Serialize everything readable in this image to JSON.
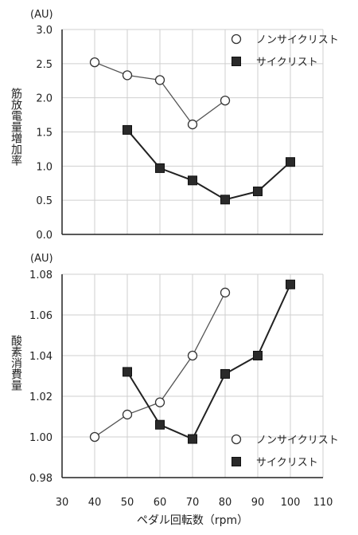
{
  "chart_data": [
    {
      "type": "line",
      "unit": "(AU)",
      "ylabel": "筋放電量増加率",
      "ylim": [
        0.0,
        3.0
      ],
      "yticks": [
        "3.0",
        "2.5",
        "2.0",
        "1.5",
        "1.0",
        "0.5",
        "0.0"
      ],
      "xlim": [
        30,
        110
      ],
      "legend_position": "top-right",
      "grid": true,
      "series": [
        {
          "name": "ノンサイクリスト",
          "marker": "circle-open",
          "x": [
            40,
            50,
            60,
            70,
            80
          ],
          "y": [
            2.52,
            2.33,
            2.26,
            1.61,
            1.96
          ]
        },
        {
          "name": "サイクリスト",
          "marker": "square-filled",
          "x": [
            50,
            60,
            70,
            80,
            90,
            100
          ],
          "y": [
            1.53,
            0.97,
            0.79,
            0.51,
            0.63,
            1.06
          ]
        }
      ]
    },
    {
      "type": "line",
      "unit": "(AU)",
      "ylabel": "酸素消費量",
      "ylim": [
        0.98,
        1.08
      ],
      "yticks": [
        "1.08",
        "1.06",
        "1.04",
        "1.02",
        "1.00",
        "0.98"
      ],
      "xlim": [
        30,
        110
      ],
      "xticks": [
        "30",
        "40",
        "50",
        "60",
        "70",
        "80",
        "90",
        "100",
        "110"
      ],
      "xlabel": "ペダル回転数（rpm）",
      "legend_position": "bottom-right",
      "grid": true,
      "series": [
        {
          "name": "ノンサイクリスト",
          "marker": "circle-open",
          "x": [
            40,
            50,
            60,
            70,
            80
          ],
          "y": [
            1.0,
            1.011,
            1.017,
            1.04,
            1.071
          ]
        },
        {
          "name": "サイクリスト",
          "marker": "square-filled",
          "x": [
            50,
            60,
            70,
            80,
            90,
            100
          ],
          "y": [
            1.032,
            1.006,
            0.999,
            1.031,
            1.04,
            1.075
          ]
        }
      ]
    }
  ]
}
